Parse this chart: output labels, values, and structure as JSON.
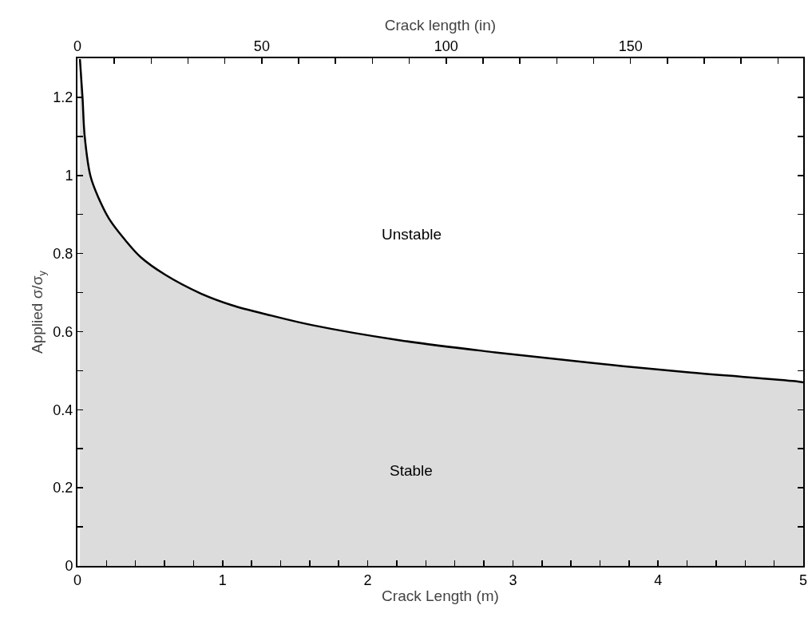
{
  "chart_data": {
    "type": "area",
    "xlabel": "Crack Length (m)",
    "x2label": "Crack length (in)",
    "ylabel": "Applied σ/σ$_{y}$",
    "x": [
      0.017,
      0.035,
      0.05,
      0.09,
      0.145,
      0.218,
      0.328,
      0.438,
      0.603,
      0.842,
      1.062,
      1.337,
      1.612,
      2.217,
      2.877,
      3.537,
      4.197,
      4.945,
      5
    ],
    "series": [
      {
        "color": "#000000",
        "values": [
          1.298,
          1.199,
          1.1,
          0.998,
          0.943,
          0.889,
          0.835,
          0.79,
          0.746,
          0.699,
          0.668,
          0.641,
          0.617,
          0.578,
          0.547,
          0.52,
          0.496,
          0.473,
          0.47
        ]
      }
    ],
    "xlim": [
      0,
      5
    ],
    "xticks": [
      0,
      {
        "value": 0.2,
        "label": null
      },
      {
        "value": 0.4,
        "label": null
      },
      {
        "value": 0.6,
        "label": null
      },
      {
        "value": 0.8,
        "label": null
      },
      1,
      {
        "value": 1.2,
        "label": null
      },
      {
        "value": 1.4,
        "label": null
      },
      {
        "value": 1.6,
        "label": null
      },
      {
        "value": 1.8,
        "label": null
      },
      2,
      {
        "value": 2.2,
        "label": null
      },
      {
        "value": 2.4,
        "label": null
      },
      {
        "value": 2.6,
        "label": null
      },
      {
        "value": 2.8,
        "label": null
      },
      3,
      {
        "value": 3.2,
        "label": null
      },
      {
        "value": 3.4,
        "label": null
      },
      {
        "value": 3.6,
        "label": null
      },
      {
        "value": 3.8,
        "label": null
      },
      4,
      {
        "value": 4.2,
        "label": null
      },
      {
        "value": 4.4,
        "label": null
      },
      {
        "value": 4.6,
        "label": null
      },
      {
        "value": 4.8,
        "label": null
      },
      5
    ],
    "x2lim": [
      0,
      196.85
    ],
    "x2ticks": [
      0,
      {
        "value": 10,
        "label": null
      },
      {
        "value": 20,
        "label": null
      },
      {
        "value": 30,
        "label": null
      },
      {
        "value": 40,
        "label": null
      },
      50,
      {
        "value": 60,
        "label": null
      },
      {
        "value": 70,
        "label": null
      },
      {
        "value": 80,
        "label": null
      },
      {
        "value": 90,
        "label": null
      },
      100,
      {
        "value": 110,
        "label": null
      },
      {
        "value": 120,
        "label": null
      },
      {
        "value": 130,
        "label": null
      },
      {
        "value": 140,
        "label": null
      },
      150,
      {
        "value": 160,
        "label": null
      },
      {
        "value": 170,
        "label": null
      },
      {
        "value": 180,
        "label": null
      },
      {
        "value": 190,
        "label": null
      }
    ],
    "ylim": [
      0,
      1.3
    ],
    "yticks": [
      0,
      {
        "value": 0.1,
        "label": null
      },
      0.2,
      {
        "value": 0.3,
        "label": null
      },
      0.4,
      {
        "value": 0.5,
        "label": null
      },
      0.6,
      {
        "value": 0.7,
        "label": null
      },
      0.8,
      {
        "value": 0.9,
        "label": null
      },
      1,
      {
        "value": 1.1,
        "label": null
      },
      1.2
    ],
    "annotations": [
      "Unstable",
      "Stable"
    ],
    "grid": false
  }
}
